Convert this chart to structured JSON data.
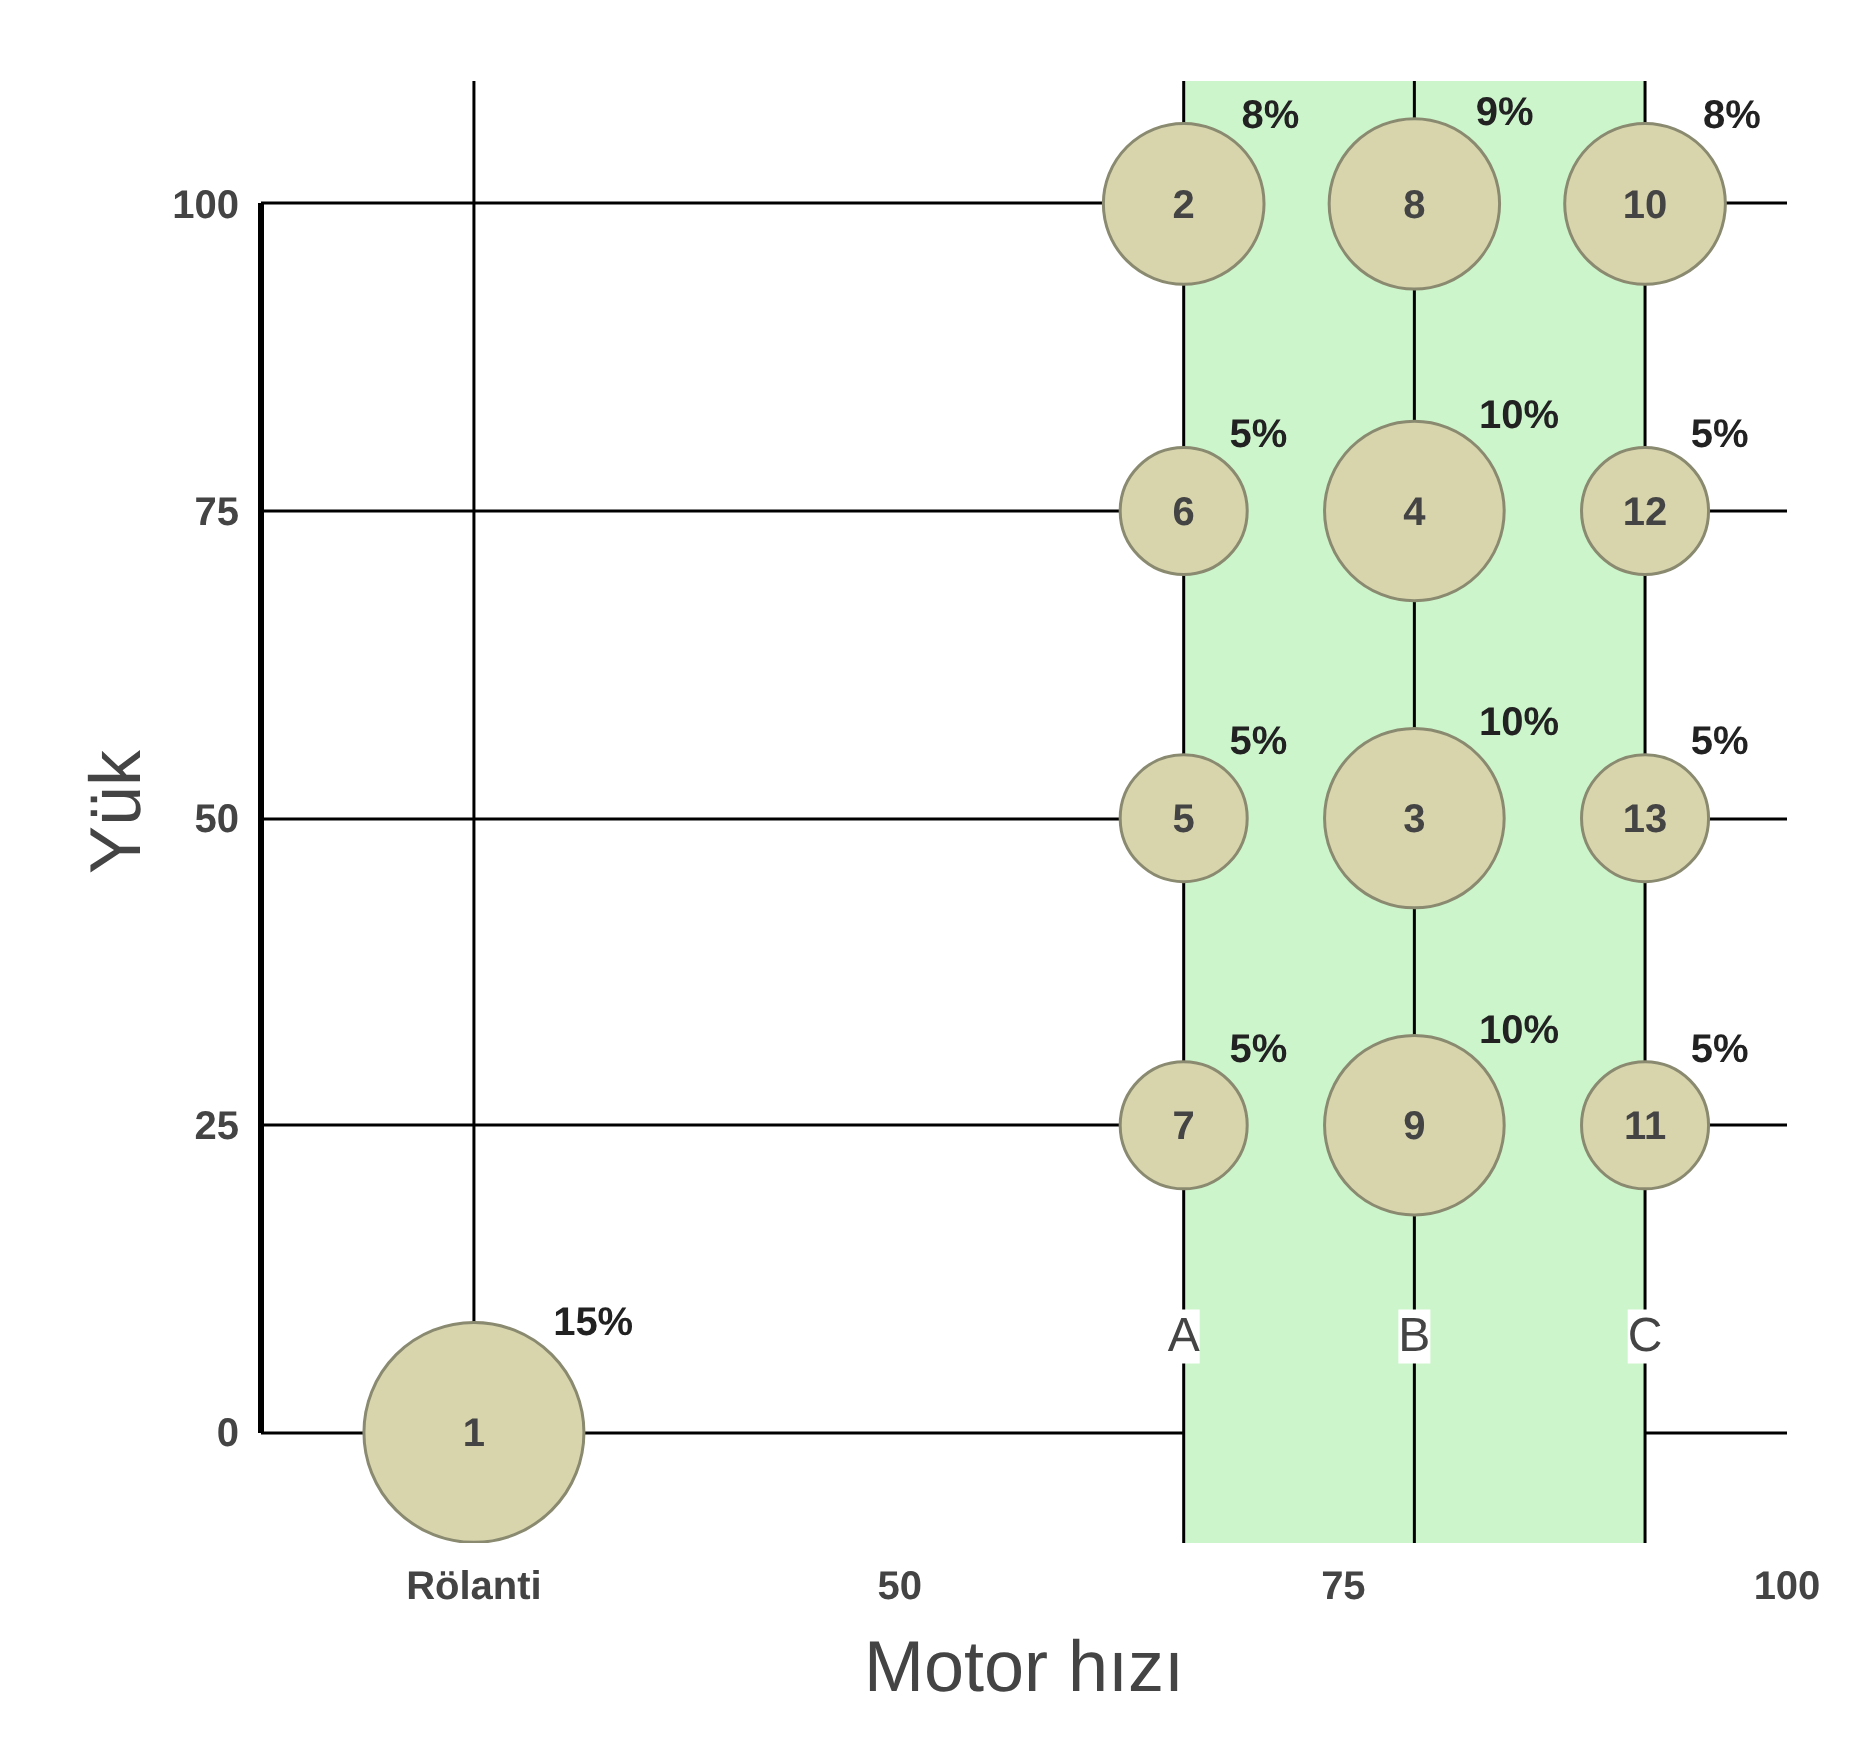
{
  "chart_data": {
    "type": "bubble",
    "xlabel": "Motor hızı",
    "ylabel": "Yük",
    "x": [
      26,
      66,
      79,
      79,
      66,
      66,
      66,
      79,
      79,
      92,
      92,
      92,
      92
    ],
    "values": [
      0,
      100,
      50,
      75,
      50,
      75,
      25,
      100,
      25,
      100,
      25,
      75,
      50
    ],
    "sizes": [
      15,
      8,
      10,
      10,
      5,
      5,
      5,
      9,
      10,
      8,
      5,
      5,
      5
    ],
    "value_labels": [
      "15%",
      "8%",
      "10%",
      "10%",
      "5%",
      "5%",
      "5%",
      "9%",
      "10%",
      "8%",
      "5%",
      "5%",
      "5%"
    ],
    "color": "#d8d5ad",
    "annotations": [
      {
        "text": "1",
        "x": 26,
        "y": 0
      },
      {
        "text": "2",
        "x": 66,
        "y": 100
      },
      {
        "text": "3",
        "x": 79,
        "y": 50
      },
      {
        "text": "4",
        "x": 79,
        "y": 75
      },
      {
        "text": "5",
        "x": 66,
        "y": 50
      },
      {
        "text": "6",
        "x": 66,
        "y": 75
      },
      {
        "text": "7",
        "x": 66,
        "y": 25
      },
      {
        "text": "8",
        "x": 79,
        "y": 100
      },
      {
        "text": "9",
        "x": 79,
        "y": 25
      },
      {
        "text": "10",
        "x": 92,
        "y": 100
      },
      {
        "text": "11",
        "x": 92,
        "y": 25
      },
      {
        "text": "12",
        "x": 92,
        "y": 75
      },
      {
        "text": "13",
        "x": 92,
        "y": 50
      }
    ],
    "ref_lines": [
      {
        "axis": "x",
        "value": 26
      },
      {
        "axis": "x",
        "value": 66,
        "label": "A"
      },
      {
        "axis": "x",
        "value": 79,
        "label": "B"
      },
      {
        "axis": "x",
        "value": 92,
        "label": "C"
      }
    ],
    "bands": [
      {
        "axis": "x",
        "from": 66,
        "to": 92,
        "color": "#ccf5cc"
      }
    ],
    "xlim": [
      14,
      100
    ],
    "xticks": [
      {
        "value": 26,
        "label": "Rölanti"
      },
      50,
      75,
      100
    ],
    "ylim": [
      -9,
      110
    ],
    "yticks": [
      0,
      25,
      50,
      75,
      100
    ],
    "grid": "y"
  }
}
